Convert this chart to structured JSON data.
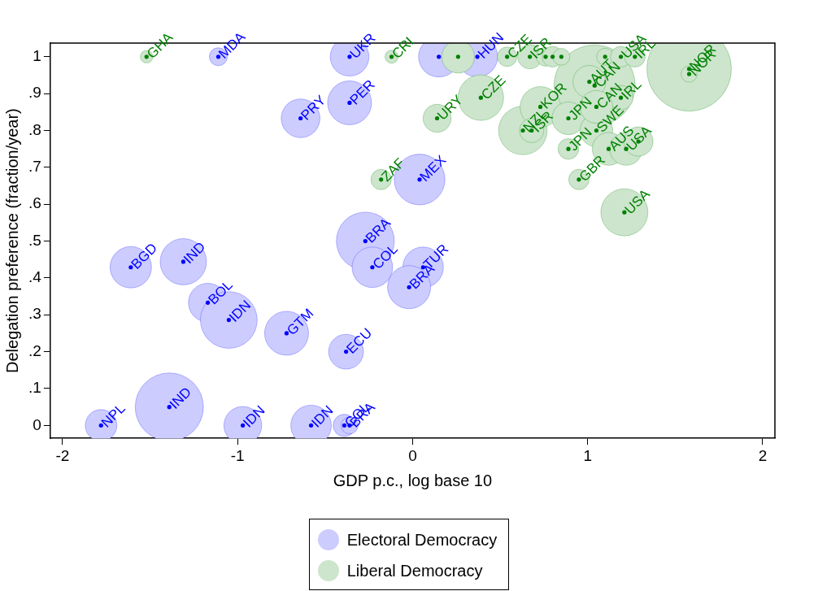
{
  "chart_data": {
    "type": "bubble",
    "xlabel": "GDP p.c., log base 10",
    "ylabel": "Delegation preference (fraction/year)",
    "xlim": [
      -2.07,
      2.07
    ],
    "xticks": [
      -2,
      -1,
      0,
      1,
      2
    ],
    "ylim": [
      -0.035,
      1.037
    ],
    "yticks": [
      0,
      {
        "value": 0.1,
        "label": ".1"
      },
      {
        "value": 0.2,
        "label": ".2"
      },
      {
        "value": 0.3,
        "label": ".3"
      },
      {
        "value": 0.4,
        "label": ".4"
      },
      {
        "value": 0.5,
        "label": ".5"
      },
      {
        "value": 0.6,
        "label": ".6"
      },
      {
        "value": 0.7,
        "label": ".7"
      },
      {
        "value": 0.8,
        "label": ".8"
      },
      {
        "value": 0.9,
        "label": ".9"
      },
      1
    ],
    "grid": false,
    "legend": "bottom",
    "series": [
      {
        "name": "Electoral Democracy",
        "color": "#ccccff",
        "x": [
          -1.11,
          -0.36,
          0.15,
          0.37,
          -0.64,
          -0.36,
          0.04,
          -0.27,
          -1.61,
          -1.31,
          -0.23,
          0.06,
          -1.17,
          -0.02,
          -1.05,
          -0.72,
          -0.38,
          -1.39,
          -1.78,
          -0.97,
          -0.58,
          -0.39,
          -0.36
        ],
        "values": [
          1,
          1,
          1,
          1,
          0.833,
          0.875,
          0.667,
          0.5,
          0.429,
          0.444,
          0.429,
          0.429,
          0.333,
          0.375,
          0.286,
          0.25,
          0.2,
          0.05,
          0,
          0,
          0,
          0,
          0
        ],
        "sizes": [
          0.045,
          0.21,
          0.23,
          0.23,
          0.21,
          0.27,
          0.36,
          0.47,
          0.24,
          0.3,
          0.23,
          0.23,
          0.21,
          0.26,
          0.45,
          0.27,
          0.17,
          0.65,
          0.14,
          0.2,
          0.23,
          0.07,
          0.04
        ]
      },
      {
        "name": "Liberal Democracy",
        "color": "#cce5cc",
        "x": [
          1.58,
          1.04,
          0.63,
          0.39,
          1.21,
          0.73,
          -1.52,
          -0.12,
          -0.18,
          0.26,
          0.54,
          0.67,
          0.76,
          0.8,
          0.85,
          1.1,
          1.19,
          1.27,
          0.14,
          0.68,
          0.89,
          1.01,
          1.19,
          1.05,
          0.89,
          1.12,
          1.22,
          1.29,
          0.95,
          1.58,
          1.05
        ],
        "values": [
          0.967,
          0.922,
          0.8,
          0.889,
          0.578,
          0.864,
          1,
          1,
          0.667,
          1,
          1,
          1,
          1,
          1,
          1,
          1,
          1,
          1,
          0.833,
          0.8,
          0.833,
          0.932,
          0.889,
          0.8,
          0.75,
          0.75,
          0.75,
          0.77,
          0.667,
          0.953,
          0.864
        ],
        "sizes": [
          1,
          0.92,
          0.33,
          0.29,
          0.31,
          0.23,
          0.022,
          0.024,
          0.058,
          0.15,
          0.053,
          0.083,
          0.05,
          0.06,
          0.04,
          0.04,
          0.06,
          0.06,
          0.11,
          0.083,
          0.15,
          0.15,
          0.083,
          0.15,
          0.06,
          0.15,
          0.15,
          0.12,
          0.058,
          0.037,
          0.15
        ]
      }
    ],
    "annotations": [
      {
        "text": "MDA",
        "x": -1.11,
        "y": 1
      },
      {
        "text": "UKR",
        "x": -0.36,
        "y": 1
      },
      {
        "text": "HUN",
        "x": 0.37,
        "y": 1
      },
      {
        "text": "PRY",
        "x": -0.64,
        "y": 0.833
      },
      {
        "text": "PER",
        "x": -0.36,
        "y": 0.875
      },
      {
        "text": "MEX",
        "x": 0.04,
        "y": 0.667
      },
      {
        "text": "BRA",
        "x": -0.27,
        "y": 0.5
      },
      {
        "text": "BGD",
        "x": -1.61,
        "y": 0.429
      },
      {
        "text": "IND",
        "x": -1.31,
        "y": 0.444
      },
      {
        "text": "COL",
        "x": -0.23,
        "y": 0.429
      },
      {
        "text": "TUR",
        "x": 0.06,
        "y": 0.429
      },
      {
        "text": "BOL",
        "x": -1.17,
        "y": 0.333
      },
      {
        "text": "BRA",
        "x": -0.02,
        "y": 0.375
      },
      {
        "text": "IDN",
        "x": -1.05,
        "y": 0.286
      },
      {
        "text": "GTM",
        "x": -0.72,
        "y": 0.25
      },
      {
        "text": "ECU",
        "x": -0.38,
        "y": 0.2
      },
      {
        "text": "IND",
        "x": -1.39,
        "y": 0.05
      },
      {
        "text": "NPL",
        "x": -1.78,
        "y": 0
      },
      {
        "text": "IDN",
        "x": -0.97,
        "y": 0
      },
      {
        "text": "IDN",
        "x": -0.58,
        "y": 0
      },
      {
        "text": "COL",
        "x": -0.39,
        "y": 0
      },
      {
        "text": "BRA",
        "x": -0.36,
        "y": 0
      },
      {
        "text": "GHA",
        "x": -1.52,
        "y": 1
      },
      {
        "text": "CRI",
        "x": -0.12,
        "y": 1
      },
      {
        "text": "ZAF",
        "x": -0.18,
        "y": 0.667
      },
      {
        "text": "CZE",
        "x": 0.54,
        "y": 1
      },
      {
        "text": "ISR",
        "x": 0.67,
        "y": 1
      },
      {
        "text": "USA",
        "x": 1.19,
        "y": 1
      },
      {
        "text": "IRL",
        "x": 1.27,
        "y": 1
      },
      {
        "text": "URY",
        "x": 0.14,
        "y": 0.833
      },
      {
        "text": "CZE",
        "x": 0.39,
        "y": 0.889
      },
      {
        "text": "NZL",
        "x": 0.63,
        "y": 0.8
      },
      {
        "text": "ISR",
        "x": 0.68,
        "y": 0.8
      },
      {
        "text": "KOR",
        "x": 0.73,
        "y": 0.864
      },
      {
        "text": "JPN",
        "x": 0.89,
        "y": 0.833
      },
      {
        "text": "CAN",
        "x": 1.05,
        "y": 0.864
      },
      {
        "text": "AUT",
        "x": 1.01,
        "y": 0.932
      },
      {
        "text": "CAN",
        "x": 1.04,
        "y": 0.922
      },
      {
        "text": "IRL",
        "x": 1.19,
        "y": 0.889
      },
      {
        "text": "SWE",
        "x": 1.05,
        "y": 0.8
      },
      {
        "text": "JPN",
        "x": 0.89,
        "y": 0.75
      },
      {
        "text": "AUS",
        "x": 1.12,
        "y": 0.75
      },
      {
        "text": "USA",
        "x": 1.22,
        "y": 0.75
      },
      {
        "text": "GBR",
        "x": 0.95,
        "y": 0.667
      },
      {
        "text": "USA",
        "x": 1.21,
        "y": 0.578
      },
      {
        "text": "NOR",
        "x": 1.58,
        "y": 0.967
      },
      {
        "text": "NOR",
        "x": 1.58,
        "y": 0.953
      }
    ]
  }
}
